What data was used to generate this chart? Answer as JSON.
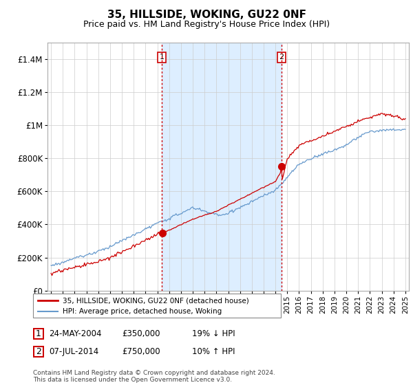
{
  "title": "35, HILLSIDE, WOKING, GU22 0NF",
  "subtitle": "Price paid vs. HM Land Registry's House Price Index (HPI)",
  "legend_line1": "35, HILLSIDE, WOKING, GU22 0NF (detached house)",
  "legend_line2": "HPI: Average price, detached house, Woking",
  "sale1_date": "24-MAY-2004",
  "sale1_price": 350000,
  "sale1_label": "£350,000",
  "sale1_hpi": "19% ↓ HPI",
  "sale2_date": "07-JUL-2014",
  "sale2_price": 750000,
  "sale2_label": "£750,000",
  "sale2_hpi": "10% ↑ HPI",
  "footer": "Contains HM Land Registry data © Crown copyright and database right 2024.\nThis data is licensed under the Open Government Licence v3.0.",
  "price_color": "#cc0000",
  "hpi_color": "#6699cc",
  "hpi_fill_color": "#ddeeff",
  "vline_color": "#cc0000",
  "background_color": "#ffffff",
  "ylim": [
    0,
    1500000
  ],
  "yticks": [
    0,
    200000,
    400000,
    600000,
    800000,
    1000000,
    1200000,
    1400000
  ],
  "ytick_labels": [
    "£0",
    "£200K",
    "£400K",
    "£600K",
    "£800K",
    "£1M",
    "£1.2M",
    "£1.4M"
  ],
  "sale1_x": 2004.38,
  "sale2_x": 2014.52,
  "xstart": 1995,
  "xend": 2025
}
